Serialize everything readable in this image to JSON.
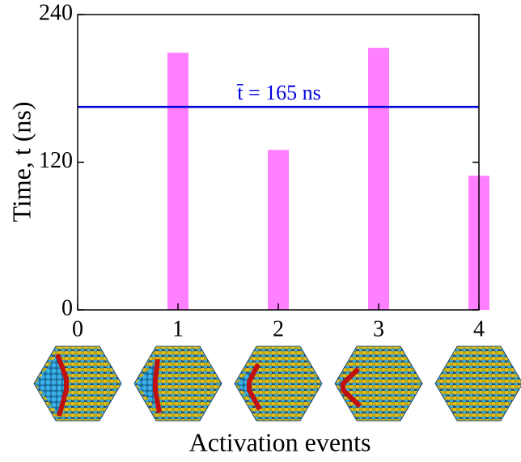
{
  "chart_data": {
    "type": "bar",
    "y_label": "Time, t (ns)",
    "x_label": "Activation events",
    "x": [
      1,
      2,
      3,
      4
    ],
    "values": [
      209,
      130,
      213,
      109
    ],
    "color": "#ff80ff",
    "mean": 165,
    "mean_color": "#0000dd",
    "annotation": "t̄ = 165 ns",
    "xlim": [
      0,
      4
    ],
    "xticks": [
      0,
      1,
      2,
      3,
      4
    ],
    "ylim": [
      0,
      240
    ],
    "yticks": [
      0,
      120,
      240
    ]
  }
}
